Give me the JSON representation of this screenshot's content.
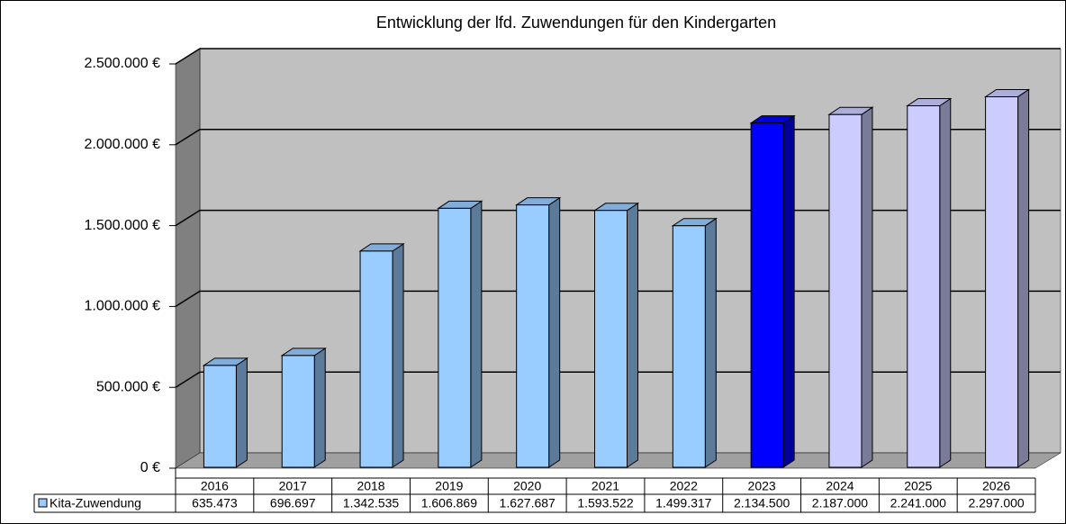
{
  "chart_data": {
    "type": "bar3d",
    "title": "Entwicklung der lfd. Zuwendungen für den Kindergarten",
    "categories": [
      "2016",
      "2017",
      "2018",
      "2019",
      "2020",
      "2021",
      "2022",
      "2023",
      "2024",
      "2025",
      "2026"
    ],
    "series": [
      {
        "name": "Kita-Zuwendung",
        "color": "#99ccff",
        "colors": [
          "#99ccff",
          "#99ccff",
          "#99ccff",
          "#99ccff",
          "#99ccff",
          "#99ccff",
          "#99ccff",
          "#0000ff",
          "#ccccff",
          "#ccccff",
          "#ccccff"
        ],
        "values": [
          635473,
          696697,
          1342535,
          1606869,
          1627687,
          1593522,
          1499317,
          2134500,
          2187000,
          2241000,
          2297000
        ],
        "value_labels": [
          "635.473",
          "696.697",
          "1.342.535",
          "1.606.869",
          "1.627.687",
          "1.593.522",
          "1.499.317",
          "2.134.500",
          "2.187.000",
          "2.241.000",
          "2.297.000"
        ]
      }
    ],
    "ylim": [
      0,
      2500000
    ],
    "yticks": [
      {
        "value": 0,
        "label": "0 €"
      },
      {
        "value": 500000,
        "label": "500.000 €"
      },
      {
        "value": 1000000,
        "label": "1.000.000 €"
      },
      {
        "value": 1500000,
        "label": "1.500.000 €"
      },
      {
        "value": 2000000,
        "label": "2.000.000 €"
      },
      {
        "value": 2500000,
        "label": "2.500.000 €"
      }
    ],
    "grid": true,
    "data_table": true
  }
}
